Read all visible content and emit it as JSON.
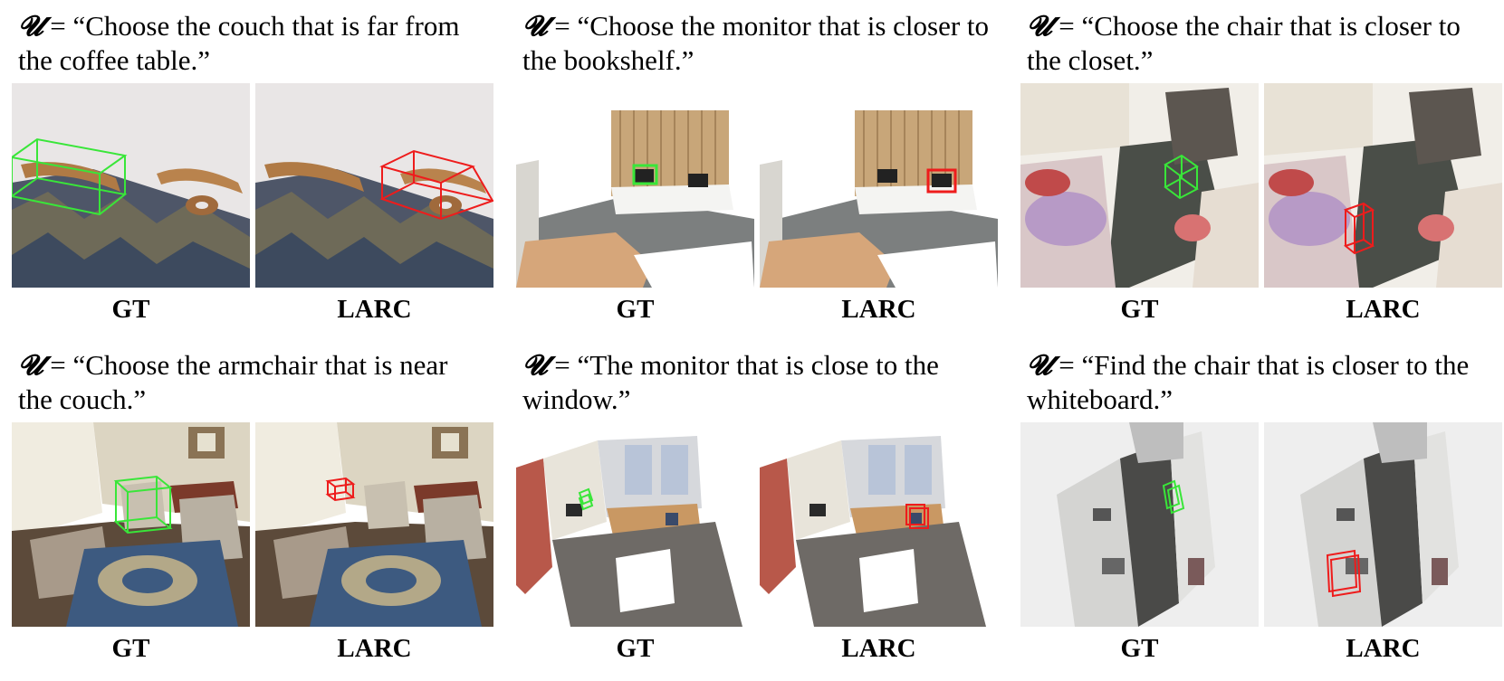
{
  "symbol": "𝓤",
  "panels": [
    {
      "quote": "= “Choose the couch that is far from the coffee table.”",
      "gt_label": "GT",
      "pred_label": "LARC",
      "gt_image": "couch scene with green bounding box",
      "pred_image": "couch scene with red bounding box"
    },
    {
      "quote": "= “Choose the monitor that is closer to the bookshelf.”",
      "gt_label": "GT",
      "pred_label": "LARC",
      "gt_image": "monitor desk scene with green box",
      "pred_image": "monitor desk scene with red box"
    },
    {
      "quote": "= “Choose the chair that is closer to the closet.”",
      "gt_label": "GT",
      "pred_label": "LARC",
      "gt_image": "cluttered room with green box",
      "pred_image": "cluttered room with red box"
    },
    {
      "quote": "= “Choose the armchair that is near the couch.”",
      "gt_label": "GT",
      "pred_label": "LARC",
      "gt_image": "living room with green box",
      "pred_image": "living room with red box"
    },
    {
      "quote": "= “The monitor that is close to the window.”",
      "gt_label": "GT",
      "pred_label": "LARC",
      "gt_image": "office scene with green box",
      "pred_image": "office scene with red box"
    },
    {
      "quote": "= “Find the chair that is closer to the whiteboard.”",
      "gt_label": "GT",
      "pred_label": "LARC",
      "gt_image": "office cubicles with green box",
      "pred_image": "office cubicles with red box"
    }
  ],
  "colors": {
    "gt_box": "#39e639",
    "pred_box": "#ee1c1c"
  }
}
